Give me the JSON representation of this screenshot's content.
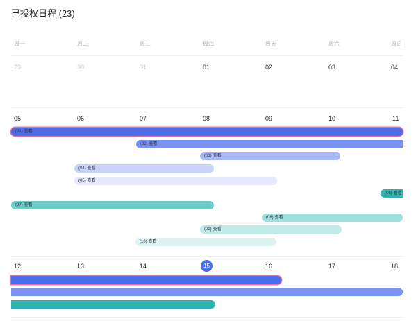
{
  "header": {
    "title": "已授权日程 (23)"
  },
  "weekdays": [
    "周一",
    "周二",
    "周三",
    "周四",
    "周五",
    "周六",
    "周日"
  ],
  "week1": {
    "dates": [
      "29",
      "30",
      "31",
      "01",
      "02",
      "03",
      "04"
    ]
  },
  "week2": {
    "dates": [
      "05",
      "06",
      "07",
      "08",
      "09",
      "10",
      "11"
    ]
  },
  "week3": {
    "dates": [
      "12",
      "13",
      "14",
      "15",
      "16",
      "17",
      "18"
    ],
    "today": "15"
  },
  "events": [
    {
      "num": "(01)",
      "action": "查看"
    },
    {
      "num": "(02)",
      "action": "查看"
    },
    {
      "num": "(03)",
      "action": "查看"
    },
    {
      "num": "(04)",
      "action": "查看"
    },
    {
      "num": "(05)",
      "action": "查看"
    },
    {
      "num": "(06)",
      "action": "查看"
    },
    {
      "num": "(07)",
      "action": "查看"
    },
    {
      "num": "(08)",
      "action": "查看"
    },
    {
      "num": "(09)",
      "action": "查看"
    },
    {
      "num": "(10)",
      "action": "查看"
    }
  ],
  "colors": {
    "blue_dark": "#4a6ee8",
    "blue_mid": "#7b93f0",
    "blue_light": "#a9b8f6",
    "blue_lighter": "#c9d2fa",
    "blue_lightest": "#e4e9fd",
    "teal_dark": "#2fb3ae",
    "teal_mid": "#6ccdc9",
    "teal_light": "#9fdfdb",
    "teal_lighter": "#c0ebe8",
    "teal_lightest": "#dcf3f1",
    "selection_outline": "#f06c9a"
  }
}
